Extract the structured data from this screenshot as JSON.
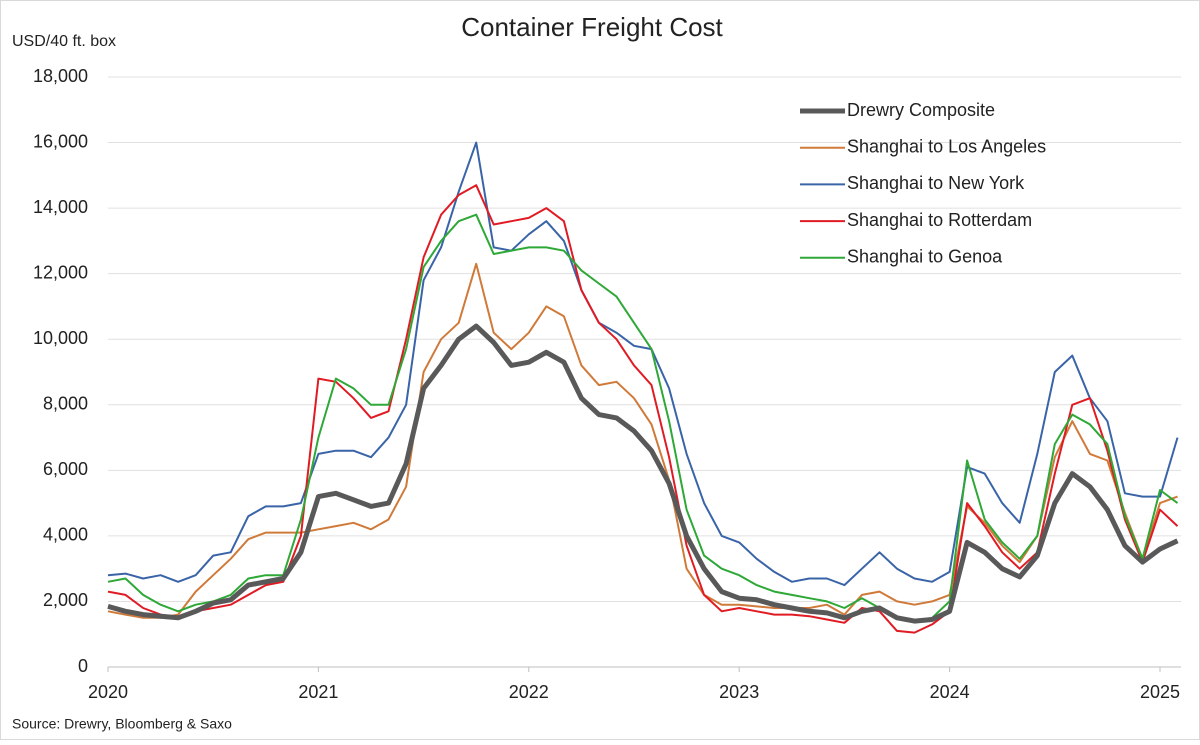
{
  "chart_data": {
    "type": "line",
    "title": "Container Freight Cost",
    "y_label": "USD/40 ft. box",
    "source": "Source: Drewry, Bloomberg & Saxo",
    "x": [
      2020,
      2020.083,
      2020.167,
      2020.25,
      2020.333,
      2020.417,
      2020.5,
      2020.583,
      2020.667,
      2020.75,
      2020.833,
      2020.917,
      2021,
      2021.083,
      2021.167,
      2021.25,
      2021.333,
      2021.417,
      2021.5,
      2021.583,
      2021.667,
      2021.75,
      2021.833,
      2021.917,
      2022,
      2022.083,
      2022.167,
      2022.25,
      2022.333,
      2022.417,
      2022.5,
      2022.583,
      2022.667,
      2022.75,
      2022.833,
      2022.917,
      2023,
      2023.083,
      2023.167,
      2023.25,
      2023.333,
      2023.417,
      2023.5,
      2023.583,
      2023.667,
      2023.75,
      2023.833,
      2023.917,
      2024,
      2024.083,
      2024.167,
      2024.25,
      2024.333,
      2024.417,
      2024.5,
      2024.583,
      2024.667,
      2024.75,
      2024.833,
      2024.917,
      2025,
      2025.083
    ],
    "xlim": [
      2020,
      2025.1
    ],
    "xticks": [
      2020,
      2021,
      2022,
      2023,
      2024,
      2025
    ],
    "ylim": [
      0,
      18000
    ],
    "yticks": [
      0,
      {
        "value": 2000,
        "label": "2,000"
      },
      {
        "value": 4000,
        "label": "4,000"
      },
      {
        "value": 6000,
        "label": "6,000"
      },
      {
        "value": 8000,
        "label": "8,000"
      },
      {
        "value": 10000,
        "label": "10,000"
      },
      {
        "value": 12000,
        "label": "12,000"
      },
      {
        "value": 14000,
        "label": "14,000"
      },
      {
        "value": 16000,
        "label": "16,000"
      },
      {
        "value": 18000,
        "label": "18,000"
      }
    ],
    "grid": true,
    "legend": "upper right",
    "series": [
      {
        "name": "Drewry Composite",
        "color": "#595959",
        "width": 5,
        "values": [
          1850,
          1700,
          1600,
          1550,
          1500,
          1700,
          1950,
          2050,
          2500,
          2600,
          2700,
          3500,
          5200,
          5300,
          5100,
          4900,
          5000,
          6200,
          8500,
          9200,
          10000,
          10400,
          9900,
          9200,
          9300,
          9600,
          9300,
          8200,
          7700,
          7600,
          7200,
          6600,
          5600,
          4000,
          3000,
          2300,
          2100,
          2050,
          1900,
          1800,
          1700,
          1650,
          1500,
          1700,
          1800,
          1500,
          1400,
          1450,
          1700,
          3800,
          3500,
          3000,
          2750,
          3400,
          5000,
          5900,
          5500,
          4800,
          3700,
          3200,
          3600,
          3850
        ]
      },
      {
        "name": "Shanghai to Los Angeles",
        "color": "#d07a3a",
        "width": 2,
        "values": [
          1700,
          1600,
          1500,
          1500,
          1600,
          2300,
          2800,
          3300,
          3900,
          4100,
          4100,
          4100,
          4200,
          4300,
          4400,
          4200,
          4500,
          5500,
          9000,
          10000,
          10500,
          12300,
          10200,
          9700,
          10200,
          11000,
          10700,
          9200,
          8600,
          8700,
          8200,
          7400,
          5700,
          3000,
          2200,
          1900,
          1900,
          1850,
          1800,
          1800,
          1800,
          1900,
          1600,
          2200,
          2300,
          2000,
          1900,
          2000,
          2200,
          4900,
          4400,
          3700,
          3200,
          4000,
          6400,
          7500,
          6500,
          6300,
          4700,
          3300,
          5000,
          5200
        ]
      },
      {
        "name": "Shanghai to New York",
        "color": "#3a64a8",
        "width": 2,
        "values": [
          2800,
          2850,
          2700,
          2800,
          2600,
          2800,
          3400,
          3500,
          4600,
          4900,
          4900,
          5000,
          6500,
          6600,
          6600,
          6400,
          7000,
          8000,
          11800,
          12800,
          14500,
          16000,
          12800,
          12700,
          13200,
          13600,
          13000,
          11500,
          10500,
          10200,
          9800,
          9700,
          8500,
          6500,
          5000,
          4000,
          3800,
          3300,
          2900,
          2600,
          2700,
          2700,
          2500,
          3000,
          3500,
          3000,
          2700,
          2600,
          2900,
          6100,
          5900,
          5000,
          4400,
          6500,
          9000,
          9500,
          8200,
          7500,
          5300,
          5200,
          5200,
          7000
        ]
      },
      {
        "name": "Shanghai to Rotterdam",
        "color": "#e01b24",
        "width": 2,
        "values": [
          2300,
          2200,
          1800,
          1600,
          1500,
          1700,
          1800,
          1900,
          2200,
          2500,
          2600,
          4000,
          8800,
          8700,
          8200,
          7600,
          7800,
          10000,
          12500,
          13800,
          14400,
          14700,
          13500,
          13600,
          13700,
          14000,
          13600,
          11500,
          10500,
          10000,
          9200,
          8600,
          6400,
          3700,
          2200,
          1700,
          1800,
          1700,
          1600,
          1600,
          1550,
          1450,
          1350,
          1800,
          1700,
          1100,
          1050,
          1300,
          1700,
          5000,
          4300,
          3500,
          3000,
          3500,
          5900,
          8000,
          8200,
          6600,
          4500,
          3200,
          4800,
          4300
        ]
      },
      {
        "name": "Shanghai to Genoa",
        "color": "#2ea836",
        "width": 2,
        "values": [
          2600,
          2700,
          2200,
          1900,
          1700,
          1900,
          2000,
          2200,
          2700,
          2800,
          2800,
          4500,
          7000,
          8800,
          8500,
          8000,
          8000,
          9700,
          12200,
          13000,
          13600,
          13800,
          12600,
          12700,
          12800,
          12800,
          12700,
          12100,
          11700,
          11300,
          10500,
          9700,
          7500,
          4800,
          3400,
          3000,
          2800,
          2500,
          2300,
          2200,
          2100,
          2000,
          1800,
          2100,
          1800,
          1500,
          1400,
          1500,
          2000,
          6300,
          4500,
          3800,
          3300,
          4000,
          6800,
          7700,
          7400,
          6800,
          4600,
          3300,
          5400,
          5000
        ]
      }
    ]
  }
}
